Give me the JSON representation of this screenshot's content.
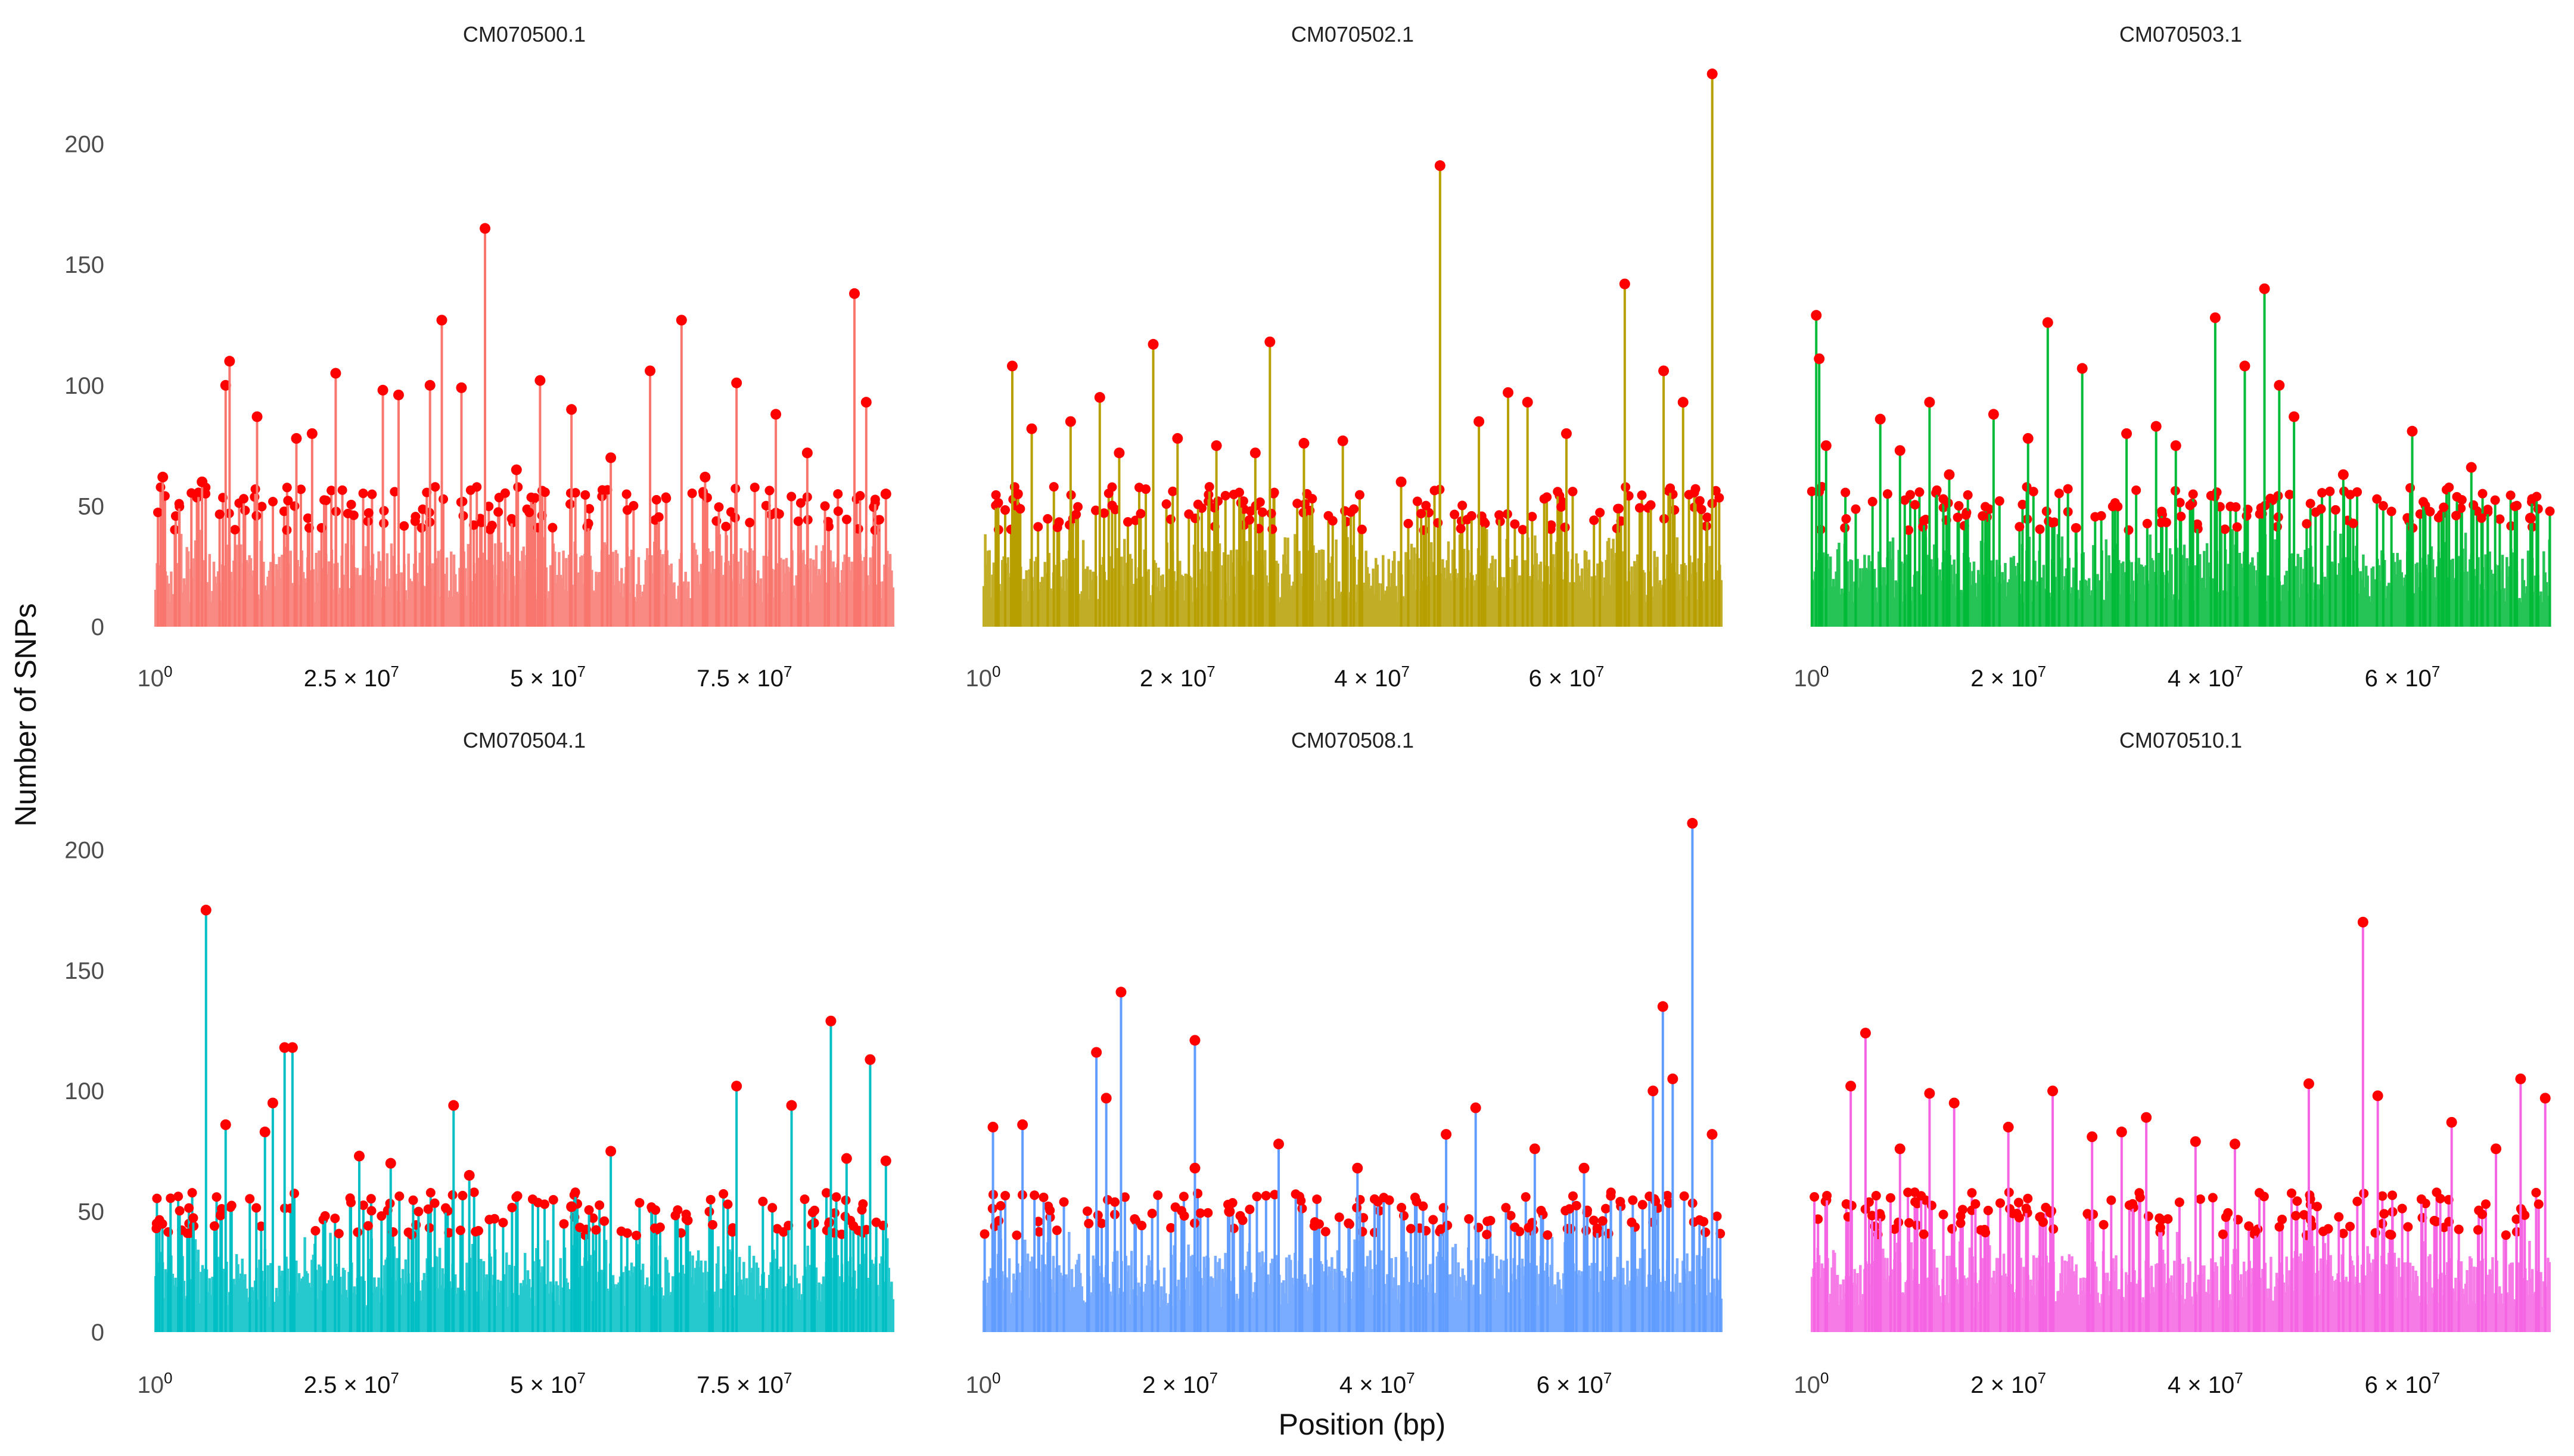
{
  "chart_data": {
    "type": "line",
    "xlabel": "Position (bp)",
    "ylabel": "Number of SNPs",
    "ylim": [
      0,
      230
    ],
    "y_ticks": [
      "0",
      "50",
      "100",
      "150",
      "200"
    ],
    "point_color": "#ff0000",
    "panels": [
      {
        "title": "CM070500.1",
        "color": "#f8766d",
        "xmax": 94000000.0,
        "x_ticks": [
          {
            "value": 1,
            "mantissa": "",
            "exp": "0"
          },
          {
            "value": 25000000.0,
            "mantissa": "2.5",
            "exp": "7"
          },
          {
            "value": 50000000.0,
            "mantissa": "5",
            "exp": "7"
          },
          {
            "value": 75000000.0,
            "mantissa": "7.5",
            "exp": "7"
          }
        ],
        "peaks": [
          {
            "x": 1000000.0,
            "y": 62
          },
          {
            "x": 6000000.0,
            "y": 60
          },
          {
            "x": 9000000.0,
            "y": 100
          },
          {
            "x": 9500000.0,
            "y": 110
          },
          {
            "x": 13000000.0,
            "y": 87
          },
          {
            "x": 18000000.0,
            "y": 78
          },
          {
            "x": 20000000.0,
            "y": 80
          },
          {
            "x": 23000000.0,
            "y": 105
          },
          {
            "x": 29000000.0,
            "y": 98
          },
          {
            "x": 31000000.0,
            "y": 96
          },
          {
            "x": 35000000.0,
            "y": 100
          },
          {
            "x": 36500000.0,
            "y": 127
          },
          {
            "x": 39000000.0,
            "y": 99
          },
          {
            "x": 42000000.0,
            "y": 165
          },
          {
            "x": 46000000.0,
            "y": 65
          },
          {
            "x": 49000000.0,
            "y": 102
          },
          {
            "x": 53000000.0,
            "y": 90
          },
          {
            "x": 58000000.0,
            "y": 70
          },
          {
            "x": 63000000.0,
            "y": 106
          },
          {
            "x": 67000000.0,
            "y": 127
          },
          {
            "x": 70000000.0,
            "y": 62
          },
          {
            "x": 74000000.0,
            "y": 101
          },
          {
            "x": 79000000.0,
            "y": 88
          },
          {
            "x": 83000000.0,
            "y": 72
          },
          {
            "x": 89000000.0,
            "y": 138
          },
          {
            "x": 90500000.0,
            "y": 93
          },
          {
            "x": 93000000.0,
            "y": 55
          }
        ]
      },
      {
        "title": "CM070502.1",
        "color": "#b79f00",
        "xmax": 76000000.0,
        "x_ticks": [
          {
            "value": 1,
            "mantissa": "",
            "exp": "0"
          },
          {
            "value": 20000000.0,
            "mantissa": "2",
            "exp": "7"
          },
          {
            "value": 40000000.0,
            "mantissa": "4",
            "exp": "7"
          },
          {
            "value": 60000000.0,
            "mantissa": "6",
            "exp": "7"
          }
        ],
        "peaks": [
          {
            "x": 3000000.0,
            "y": 108
          },
          {
            "x": 5000000.0,
            "y": 82
          },
          {
            "x": 9000000.0,
            "y": 85
          },
          {
            "x": 12000000.0,
            "y": 95
          },
          {
            "x": 14000000.0,
            "y": 72
          },
          {
            "x": 17500000.0,
            "y": 117
          },
          {
            "x": 20000000.0,
            "y": 78
          },
          {
            "x": 24000000.0,
            "y": 75
          },
          {
            "x": 28000000.0,
            "y": 72
          },
          {
            "x": 29500000.0,
            "y": 118
          },
          {
            "x": 33000000.0,
            "y": 76
          },
          {
            "x": 37000000.0,
            "y": 77
          },
          {
            "x": 43000000.0,
            "y": 60
          },
          {
            "x": 47000000.0,
            "y": 191
          },
          {
            "x": 51000000.0,
            "y": 85
          },
          {
            "x": 54000000.0,
            "y": 97
          },
          {
            "x": 56000000.0,
            "y": 93
          },
          {
            "x": 60000000.0,
            "y": 80
          },
          {
            "x": 66000000.0,
            "y": 142
          },
          {
            "x": 70000000.0,
            "y": 106
          },
          {
            "x": 72000000.0,
            "y": 93
          },
          {
            "x": 75000000.0,
            "y": 229
          }
        ]
      },
      {
        "title": "CM070503.1",
        "color": "#00ba38",
        "xmax": 75000000.0,
        "x_ticks": [
          {
            "value": 1,
            "mantissa": "",
            "exp": "0"
          },
          {
            "value": 20000000.0,
            "mantissa": "2",
            "exp": "7"
          },
          {
            "value": 40000000.0,
            "mantissa": "4",
            "exp": "7"
          },
          {
            "value": 60000000.0,
            "mantissa": "6",
            "exp": "7"
          }
        ],
        "peaks": [
          {
            "x": 500000.0,
            "y": 129
          },
          {
            "x": 800000.0,
            "y": 111
          },
          {
            "x": 1500000.0,
            "y": 75
          },
          {
            "x": 7000000.0,
            "y": 86
          },
          {
            "x": 9000000.0,
            "y": 73
          },
          {
            "x": 12000000.0,
            "y": 93
          },
          {
            "x": 14000000.0,
            "y": 63
          },
          {
            "x": 18500000.0,
            "y": 88
          },
          {
            "x": 22000000.0,
            "y": 78
          },
          {
            "x": 24000000.0,
            "y": 126
          },
          {
            "x": 27500000.0,
            "y": 107
          },
          {
            "x": 32000000.0,
            "y": 80
          },
          {
            "x": 35000000.0,
            "y": 83
          },
          {
            "x": 37000000.0,
            "y": 75
          },
          {
            "x": 41000000.0,
            "y": 128
          },
          {
            "x": 44000000.0,
            "y": 108
          },
          {
            "x": 46000000.0,
            "y": 140
          },
          {
            "x": 47500000.0,
            "y": 100
          },
          {
            "x": 49000000.0,
            "y": 87
          },
          {
            "x": 54000000.0,
            "y": 63
          },
          {
            "x": 61000000.0,
            "y": 81
          },
          {
            "x": 67000000.0,
            "y": 66
          },
          {
            "x": 73000000.0,
            "y": 45
          }
        ]
      },
      {
        "title": "CM070504.1",
        "color": "#00bfc4",
        "xmax": 94000000.0,
        "x_ticks": [
          {
            "value": 1,
            "mantissa": "",
            "exp": "0"
          },
          {
            "value": 25000000.0,
            "mantissa": "2.5",
            "exp": "7"
          },
          {
            "value": 50000000.0,
            "mantissa": "5",
            "exp": "7"
          },
          {
            "value": 75000000.0,
            "mantissa": "7.5",
            "exp": "7"
          }
        ],
        "peaks": [
          {
            "x": 6500000.0,
            "y": 175
          },
          {
            "x": 9000000.0,
            "y": 86
          },
          {
            "x": 14000000.0,
            "y": 83
          },
          {
            "x": 15000000.0,
            "y": 95
          },
          {
            "x": 16500000.0,
            "y": 118
          },
          {
            "x": 17500000.0,
            "y": 118
          },
          {
            "x": 26000000.0,
            "y": 73
          },
          {
            "x": 30000000.0,
            "y": 70
          },
          {
            "x": 38000000.0,
            "y": 94
          },
          {
            "x": 40000000.0,
            "y": 65
          },
          {
            "x": 53000000.0,
            "y": 52
          },
          {
            "x": 58000000.0,
            "y": 75
          },
          {
            "x": 74000000.0,
            "y": 102
          },
          {
            "x": 81000000.0,
            "y": 94
          },
          {
            "x": 86000000.0,
            "y": 129
          },
          {
            "x": 88000000.0,
            "y": 72
          },
          {
            "x": 91000000.0,
            "y": 113
          },
          {
            "x": 93000000.0,
            "y": 71
          }
        ]
      },
      {
        "title": "CM070508.1",
        "color": "#619cff",
        "xmax": 75000000.0,
        "x_ticks": [
          {
            "value": 1,
            "mantissa": "",
            "exp": "0"
          },
          {
            "value": 20000000.0,
            "mantissa": "2",
            "exp": "7"
          },
          {
            "value": 40000000.0,
            "mantissa": "4",
            "exp": "7"
          },
          {
            "value": 60000000.0,
            "mantissa": "6",
            "exp": "7"
          }
        ],
        "peaks": [
          {
            "x": 1000000.0,
            "y": 85
          },
          {
            "x": 4000000.0,
            "y": 86
          },
          {
            "x": 11500000.0,
            "y": 116
          },
          {
            "x": 12500000.0,
            "y": 97
          },
          {
            "x": 14000000.0,
            "y": 141
          },
          {
            "x": 21500000.0,
            "y": 121
          },
          {
            "x": 21500000.0,
            "y": 68
          },
          {
            "x": 25000000.0,
            "y": 50
          },
          {
            "x": 30000000.0,
            "y": 78
          },
          {
            "x": 38000000.0,
            "y": 68
          },
          {
            "x": 47000000.0,
            "y": 82
          },
          {
            "x": 50000000.0,
            "y": 93
          },
          {
            "x": 56000000.0,
            "y": 76
          },
          {
            "x": 61000000.0,
            "y": 68
          },
          {
            "x": 68000000.0,
            "y": 100
          },
          {
            "x": 69000000.0,
            "y": 135
          },
          {
            "x": 70000000.0,
            "y": 105
          },
          {
            "x": 72000000.0,
            "y": 211
          },
          {
            "x": 74000000.0,
            "y": 82
          }
        ]
      },
      {
        "title": "CM070510.1",
        "color": "#f564e3",
        "xmax": 75000000.0,
        "x_ticks": [
          {
            "value": 1,
            "mantissa": "",
            "exp": "0"
          },
          {
            "value": 20000000.0,
            "mantissa": "2",
            "exp": "7"
          },
          {
            "value": 40000000.0,
            "mantissa": "4",
            "exp": "7"
          },
          {
            "value": 60000000.0,
            "mantissa": "6",
            "exp": "7"
          }
        ],
        "peaks": [
          {
            "x": 4000000.0,
            "y": 102
          },
          {
            "x": 5500000.0,
            "y": 124
          },
          {
            "x": 9000000.0,
            "y": 76
          },
          {
            "x": 12000000.0,
            "y": 99
          },
          {
            "x": 14500000.0,
            "y": 95
          },
          {
            "x": 20000000.0,
            "y": 85
          },
          {
            "x": 24500000.0,
            "y": 100
          },
          {
            "x": 28500000.0,
            "y": 81
          },
          {
            "x": 31500000.0,
            "y": 83
          },
          {
            "x": 34000000.0,
            "y": 89
          },
          {
            "x": 39000000.0,
            "y": 79
          },
          {
            "x": 43000000.0,
            "y": 78
          },
          {
            "x": 50500000.0,
            "y": 103
          },
          {
            "x": 56000000.0,
            "y": 170
          },
          {
            "x": 57500000.0,
            "y": 98
          },
          {
            "x": 65000000.0,
            "y": 87
          },
          {
            "x": 69500000.0,
            "y": 76
          },
          {
            "x": 72000000.0,
            "y": 105
          },
          {
            "x": 74500000.0,
            "y": 97
          }
        ]
      }
    ]
  }
}
